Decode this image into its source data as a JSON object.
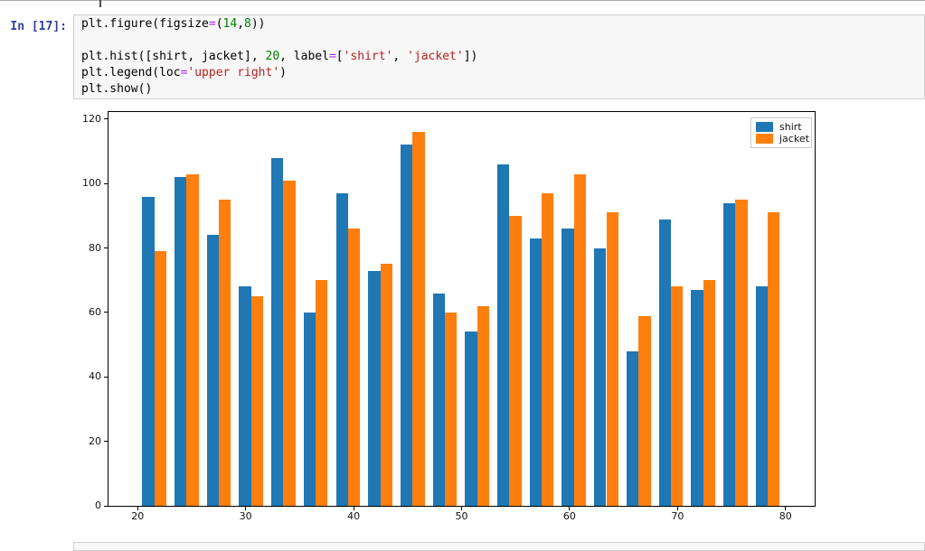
{
  "notebook": {
    "cell": {
      "prompt": "In [17]:",
      "code_lines": [
        [
          {
            "t": "plt.figure(figsize",
            "c": "plain"
          },
          {
            "t": "=",
            "c": "op"
          },
          {
            "t": "(",
            "c": "plain"
          },
          {
            "t": "14",
            "c": "num"
          },
          {
            "t": ",",
            "c": "plain"
          },
          {
            "t": "8",
            "c": "num"
          },
          {
            "t": "))",
            "c": "plain"
          }
        ],
        [],
        [
          {
            "t": "plt.hist([shirt, jacket], ",
            "c": "plain"
          },
          {
            "t": "20",
            "c": "num"
          },
          {
            "t": ", label",
            "c": "plain"
          },
          {
            "t": "=",
            "c": "op"
          },
          {
            "t": "[",
            "c": "plain"
          },
          {
            "t": "'shirt'",
            "c": "str"
          },
          {
            "t": ", ",
            "c": "plain"
          },
          {
            "t": "'jacket'",
            "c": "str"
          },
          {
            "t": "])",
            "c": "plain"
          }
        ],
        [
          {
            "t": "plt.legend(loc",
            "c": "plain"
          },
          {
            "t": "=",
            "c": "op"
          },
          {
            "t": "'upper right'",
            "c": "str"
          },
          {
            "t": ")",
            "c": "plain"
          }
        ],
        [
          {
            "t": "plt.show()",
            "c": "plain"
          }
        ]
      ]
    }
  },
  "colors": {
    "prompt": "#303F9F",
    "code_number": "#008000",
    "code_string": "#BA2121",
    "code_operator": "#AA22FF",
    "cell_border": "#cfcfcf",
    "cell_background": "#f7f7f7",
    "series_shirt": "#1f77b4",
    "series_jacket": "#ff7f0e"
  },
  "chart_data": {
    "type": "bar",
    "subtype": "histogram",
    "title": "",
    "xlabel": "",
    "ylabel": "",
    "bins": 20,
    "bin_start": 20.42,
    "bin_width": 2.99,
    "bar_fraction": 0.374,
    "series": [
      {
        "name": "shirt",
        "color": "#1f77b4",
        "values": [
          96,
          102,
          84,
          68,
          108,
          60,
          97,
          73,
          112,
          66,
          54,
          106,
          83,
          86,
          80,
          48,
          89,
          67,
          94,
          68
        ]
      },
      {
        "name": "jacket",
        "color": "#ff7f0e",
        "values": [
          79,
          103,
          95,
          65,
          101,
          70,
          86,
          75,
          116,
          60,
          62,
          90,
          97,
          103,
          91,
          59,
          68,
          70,
          95,
          91
        ]
      }
    ],
    "xlim": [
      17.3,
      82.7
    ],
    "ylim": [
      0,
      122.2
    ],
    "xticks": [
      20,
      30,
      40,
      50,
      60,
      70,
      80
    ],
    "yticks": [
      0,
      20,
      40,
      60,
      80,
      100,
      120
    ],
    "grid": false,
    "legend": {
      "position": "upper right",
      "entries": [
        "shirt",
        "jacket"
      ]
    }
  }
}
